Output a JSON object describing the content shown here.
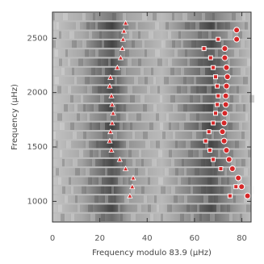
{
  "chart_data": {
    "type": "scatter",
    "xlabel": "Frequency modulo 83.9 (μHz)",
    "ylabel": "Frequency (μHz)",
    "xlim": [
      0,
      83.9
    ],
    "ylim": [
      810,
      2740
    ],
    "xticks": [
      0,
      20,
      40,
      60,
      80
    ],
    "yticks": [
      1000,
      1500,
      2000,
      2500
    ],
    "series": [
      {
        "marker": "triangle",
        "color": "#d62728",
        "x": [
          30.9,
          30.2,
          29.8,
          29.5,
          28.8,
          27.4,
          24.5,
          24.2,
          24.9,
          25.2,
          25.6,
          25.2,
          24.5,
          24.2,
          24.9,
          28.4,
          30.9,
          34.1,
          33.7,
          32.7
        ],
        "y": [
          2640,
          2565,
          2490,
          2405,
          2320,
          2230,
          2140,
          2060,
          1970,
          1890,
          1810,
          1720,
          1640,
          1555,
          1470,
          1385,
          1300,
          1215,
          1135,
          1050
        ]
      },
      {
        "marker": "circle",
        "color": "#d62728",
        "x": [
          77.8,
          77.8,
          72.8,
          72.8,
          73.5,
          73.9,
          73.5,
          73.2,
          73.2,
          72.8,
          72.5,
          71.8,
          72.5,
          73.5,
          74.6,
          76.0,
          78.5,
          79.9,
          82.4
        ],
        "y": [
          2575,
          2490,
          2405,
          2320,
          2230,
          2145,
          2060,
          1970,
          1890,
          1810,
          1720,
          1640,
          1555,
          1470,
          1385,
          1300,
          1215,
          1135,
          1050
        ]
      },
      {
        "marker": "square",
        "color": "#d62728",
        "x": [
          70.0,
          64.0,
          66.8,
          67.9,
          68.9,
          69.6,
          70.0,
          69.6,
          68.9,
          67.9,
          66.1,
          64.7,
          66.5,
          67.9,
          71.1,
          77.5,
          75.0
        ],
        "y": [
          2490,
          2405,
          2320,
          2230,
          2145,
          2060,
          1970,
          1890,
          1810,
          1720,
          1640,
          1555,
          1470,
          1385,
          1300,
          1135,
          1050
        ]
      }
    ]
  }
}
